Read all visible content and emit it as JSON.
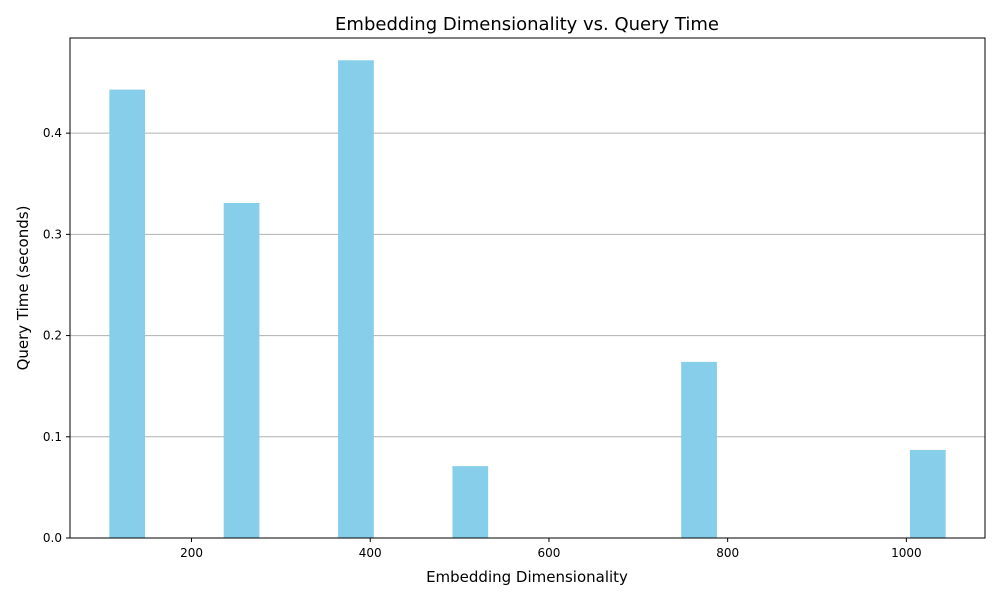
{
  "chart_data": {
    "type": "bar",
    "title": "Embedding Dimensionality vs. Query Time",
    "xlabel": "Embedding Dimensionality",
    "ylabel": "Query Time (seconds)",
    "x": [
      128,
      256,
      384,
      512,
      768,
      1024
    ],
    "values": [
      0.443,
      0.331,
      0.472,
      0.071,
      0.174,
      0.087
    ],
    "bar_color": "#87CEEB",
    "xlim": [
      64,
      1088
    ],
    "ylim": [
      0,
      0.494
    ],
    "xticks": [
      200,
      400,
      600,
      800,
      1000
    ],
    "xtick_labels": [
      "200",
      "400",
      "600",
      "800",
      "1000"
    ],
    "yticks": [
      0.0,
      0.1,
      0.2,
      0.3,
      0.4
    ],
    "ytick_labels": [
      "0.0",
      "0.1",
      "0.2",
      "0.3",
      "0.4"
    ],
    "grid": "y",
    "grid_color": "#b0b0b0"
  }
}
